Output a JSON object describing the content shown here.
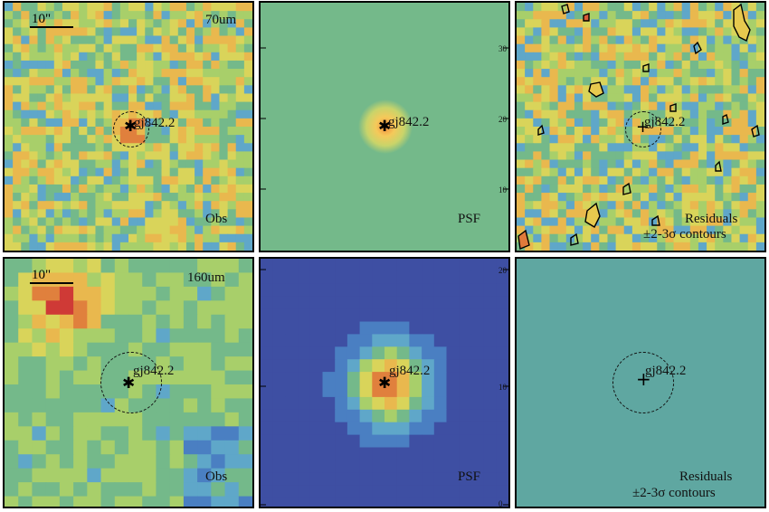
{
  "scale_bar": "10\"",
  "source_name": "gj842.2",
  "colors": {
    "psf_bg_70": "#74b98a",
    "res_bg_160": "#5fa7a1",
    "psf_bg_160": "#3d55a8"
  },
  "rows": [
    {
      "band": "70um",
      "panels": {
        "obs": "Obs",
        "psf": "PSF",
        "residuals": "Residuals",
        "contours": "±2-3σ contours"
      },
      "axis_ticks": [
        "30",
        "20",
        "10"
      ]
    },
    {
      "band": "160um",
      "panels": {
        "obs": "Obs",
        "psf": "PSF",
        "residuals": "Residuals",
        "contours": "±2-3σ contours"
      },
      "axis_ticks": [
        "20",
        "10",
        "0"
      ]
    }
  ]
}
